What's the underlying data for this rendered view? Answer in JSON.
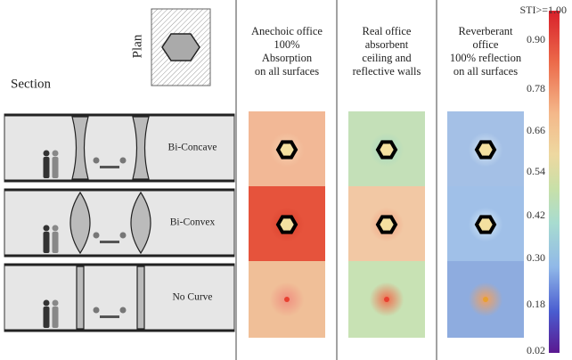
{
  "header": {
    "section": "Section",
    "plan": "Plan",
    "columns": [
      [
        "Anechoic office",
        "100%",
        "Absorption",
        "on all surfaces"
      ],
      [
        "Real office",
        "absorbent",
        "ceiling and",
        "reflective walls"
      ],
      [
        "Reverberant",
        "office",
        "100% reflection",
        "on all surfaces"
      ]
    ]
  },
  "rows": [
    "Bi-Concave",
    "Bi-Convex",
    "No Curve"
  ],
  "colorbar": {
    "title": "STI>=1.00",
    "ticks": [
      "0.90",
      "0.78",
      "0.66",
      "0.54",
      "0.42",
      "0.30",
      "0.18",
      "0.02"
    ]
  }
}
